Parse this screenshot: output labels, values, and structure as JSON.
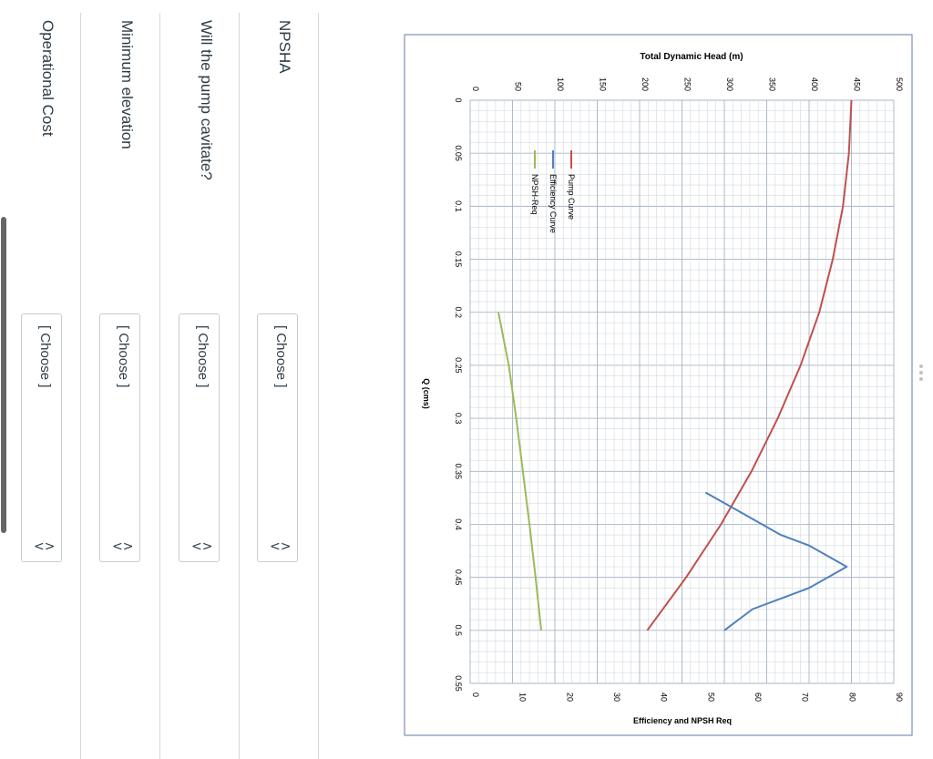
{
  "questions": [
    {
      "label": "NPSHA",
      "select_value": "[ Choose ]"
    },
    {
      "label": "Will the pump cavitate?",
      "select_value": "[ Choose ]"
    },
    {
      "label": "Minimum elevation",
      "select_value": "[ Choose ]"
    },
    {
      "label": "Operational Cost",
      "select_value": "[ Choose ]"
    }
  ],
  "select_arrow_icon": "up-down-chevron-icon",
  "chart_data": {
    "type": "line",
    "orientation": "rotated 90 degrees clockwise",
    "xlabel": "Q (cms)",
    "x_ticks": [
      "0",
      "0.05",
      "0.1",
      "0.15",
      "0.2",
      "0.25",
      "0.3",
      "0.35",
      "0.4",
      "0.45",
      "0.5",
      "0.55"
    ],
    "xlim": [
      0,
      0.55
    ],
    "ylabel": "Total Dynamic Head (m)",
    "y_ticks": [
      "0",
      "50",
      "100",
      "150",
      "200",
      "250",
      "300",
      "350",
      "400",
      "450",
      "500"
    ],
    "ylim": [
      0,
      500
    ],
    "y2label": "Efficiency and NPSH Req",
    "y2_ticks": [
      "0",
      "10",
      "20",
      "30",
      "40",
      "50",
      "60",
      "70",
      "80",
      "90"
    ],
    "y2lim": [
      0,
      90
    ],
    "grid": true,
    "legend_position": "top-left",
    "series": [
      {
        "name": "Pump Curve",
        "axis": "y",
        "color": "#c0504d",
        "x": [
          0,
          0.05,
          0.1,
          0.15,
          0.2,
          0.25,
          0.3,
          0.35,
          0.4,
          0.45,
          0.5
        ],
        "y": [
          450,
          447,
          440,
          428,
          412,
          390,
          363,
          332,
          296,
          255,
          209
        ]
      },
      {
        "name": "Efficiency Curve",
        "axis": "y2",
        "color": "#4f81bd",
        "x": [
          0.37,
          0.39,
          0.41,
          0.42,
          0.43,
          0.44,
          0.45,
          0.46,
          0.47,
          0.48,
          0.5
        ],
        "y": [
          50,
          58,
          66,
          72,
          76,
          80,
          76,
          72,
          66,
          60,
          54
        ]
      },
      {
        "name": "NPSH-Req",
        "axis": "y2",
        "color": "#9bbb59",
        "x": [
          0.2,
          0.25,
          0.3,
          0.35,
          0.4,
          0.45,
          0.5
        ],
        "y": [
          6,
          8.2,
          9.8,
          11.2,
          12.6,
          13.9,
          15.1
        ]
      }
    ]
  }
}
